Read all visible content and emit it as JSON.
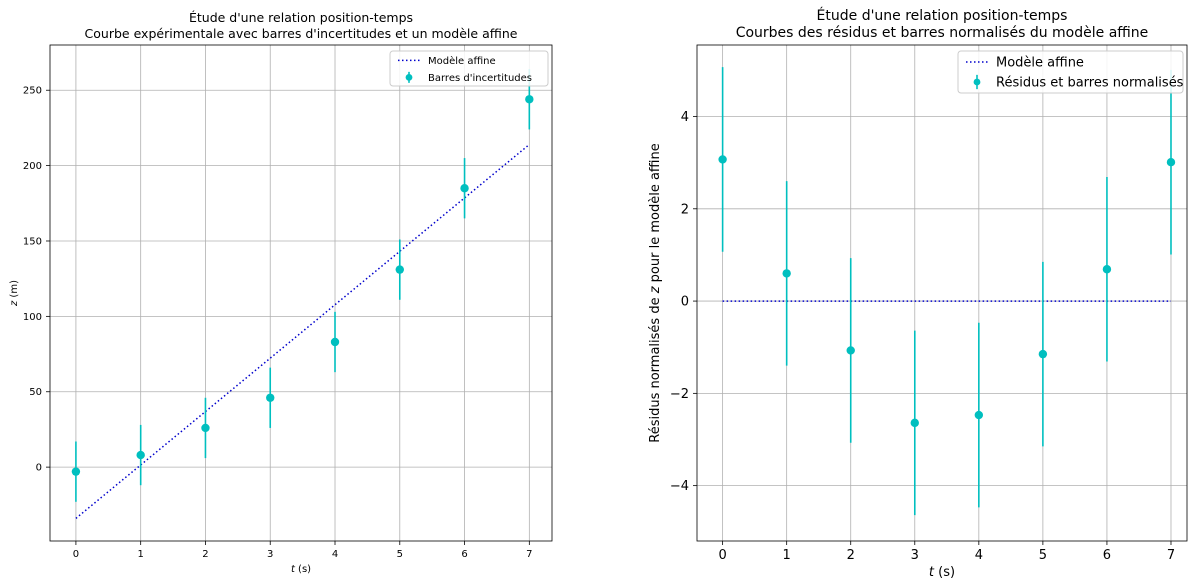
{
  "chart_data": [
    {
      "type": "scatter",
      "title": "Étude d'une relation position-temps",
      "subtitle": "Courbe expérimentale avec barres d'incertitudes et un modèle affine",
      "xlabel": "t (s)",
      "ylabel": "z (m)",
      "xlim": [
        -0.4,
        7.35
      ],
      "ylim": [
        -49,
        280
      ],
      "xticks": [
        0,
        1,
        2,
        3,
        4,
        5,
        6,
        7
      ],
      "yticks": [
        0,
        50,
        100,
        150,
        200,
        250
      ],
      "grid": true,
      "legend": "top-right",
      "series": [
        {
          "name": "Modèle affine",
          "kind": "line",
          "style": "dotted",
          "color": "#0000cc",
          "x": [
            0,
            7
          ],
          "y": [
            -34,
            214
          ]
        },
        {
          "name": "Barres d'incertitudes",
          "kind": "errorbar",
          "color": "#00bfbf",
          "x": [
            0,
            1,
            2,
            3,
            4,
            5,
            6,
            7
          ],
          "y": [
            -3,
            8,
            26,
            46,
            83,
            131,
            185,
            244
          ],
          "err": [
            20,
            20,
            20,
            20,
            20,
            20,
            20,
            20
          ]
        }
      ]
    },
    {
      "type": "scatter",
      "title": "Étude d'une relation position-temps",
      "subtitle": "Courbes des résidus et barres normalisés du modèle affine",
      "xlabel": "t (s)",
      "ylabel": "Résidus normalisés de z pour le modèle affine",
      "xlim": [
        -0.4,
        7.25
      ],
      "ylim": [
        -5.2,
        5.55
      ],
      "xticks": [
        0,
        1,
        2,
        3,
        4,
        5,
        6,
        7
      ],
      "yticks": [
        -4,
        -2,
        0,
        2,
        4
      ],
      "ytick_labels": [
        "−4",
        "−2",
        "0",
        "2",
        "4"
      ],
      "grid": true,
      "legend": "top-right",
      "series": [
        {
          "name": "Modèle affine",
          "kind": "line",
          "style": "dotted",
          "color": "#0000cc",
          "x": [
            0,
            7
          ],
          "y": [
            0,
            0
          ]
        },
        {
          "name": "Résidus et barres normalisés",
          "kind": "errorbar",
          "color": "#00bfbf",
          "x": [
            0,
            1,
            2,
            3,
            4,
            5,
            6,
            7
          ],
          "y": [
            3.07,
            0.6,
            -1.07,
            -2.64,
            -2.47,
            -1.15,
            0.69,
            3.01
          ],
          "err": [
            2,
            2,
            2,
            2,
            2,
            2,
            2,
            2
          ]
        }
      ]
    }
  ]
}
